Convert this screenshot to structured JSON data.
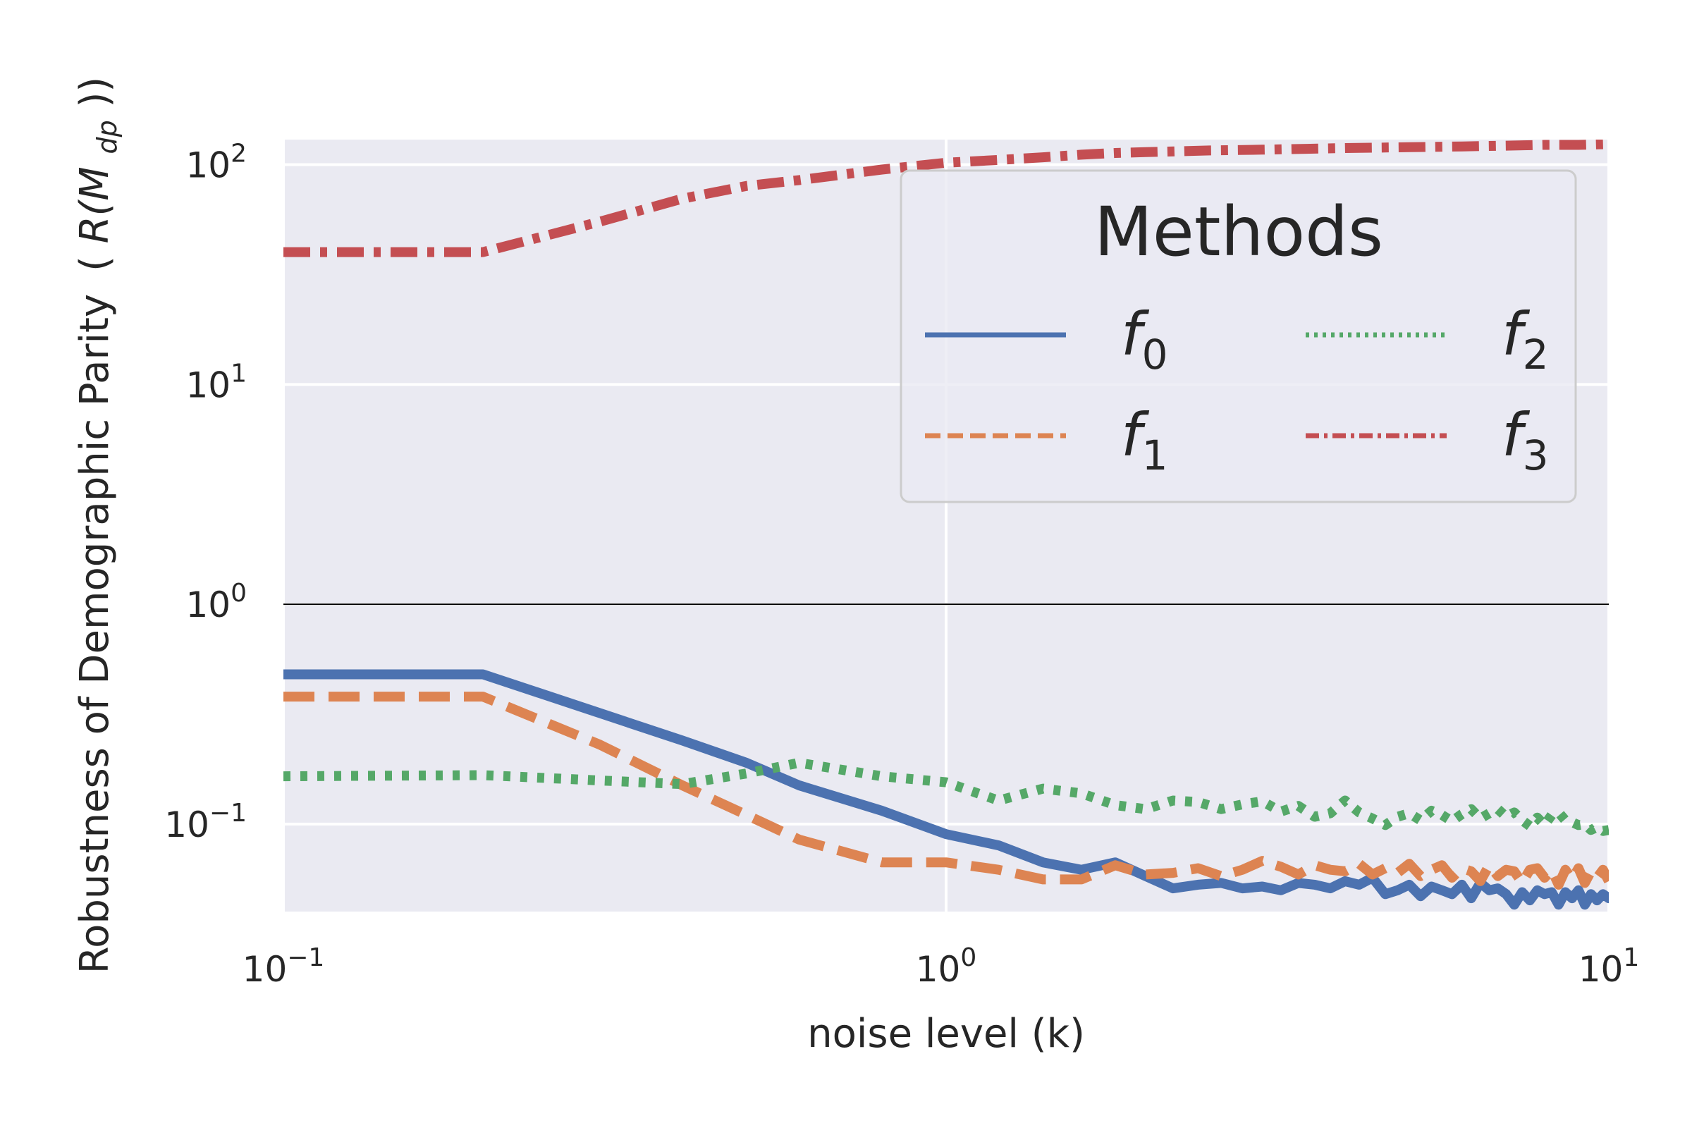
{
  "chart_data": {
    "type": "line",
    "xlabel": "noise level (k)",
    "ylabel": "Robustness of Demographic Parity",
    "ylabel_symbol": {
      "open": "(",
      "base": "R(M",
      "sub": "dp",
      "close": "))"
    },
    "xscale": "log",
    "yscale": "log",
    "xlim": [
      0.1,
      10
    ],
    "ylim": [
      0.04,
      130
    ],
    "x_ticks": [
      {
        "value": 0.1,
        "base": "10",
        "exp": "−1"
      },
      {
        "value": 1,
        "base": "10",
        "exp": "0"
      },
      {
        "value": 10,
        "base": "10",
        "exp": "1"
      }
    ],
    "y_ticks": [
      {
        "value": 0.1,
        "base": "10",
        "exp": "−1"
      },
      {
        "value": 1,
        "base": "10",
        "exp": "0"
      },
      {
        "value": 10,
        "base": "10",
        "exp": "1"
      },
      {
        "value": 100,
        "base": "10",
        "exp": "2"
      }
    ],
    "reference_line": {
      "y": 1,
      "color": "#000000"
    },
    "grid": true,
    "legend": {
      "title": "Methods",
      "placement": "upper right",
      "columns": 2
    },
    "series": [
      {
        "name": "f0",
        "label_base": "f",
        "label_sub": "0",
        "color": "#4c72b0",
        "dash": "solid",
        "points": [
          [
            0.1,
            0.48
          ],
          [
            0.2,
            0.48
          ],
          [
            0.3,
            0.32
          ],
          [
            0.4,
            0.24
          ],
          [
            0.5,
            0.19
          ],
          [
            0.6,
            0.15
          ],
          [
            0.8,
            0.115
          ],
          [
            1.0,
            0.09
          ],
          [
            1.2,
            0.08
          ],
          [
            1.4,
            0.067
          ],
          [
            1.6,
            0.062
          ],
          [
            1.8,
            0.067
          ],
          [
            2.0,
            0.058
          ],
          [
            2.2,
            0.051
          ],
          [
            2.4,
            0.053
          ],
          [
            2.6,
            0.054
          ],
          [
            2.8,
            0.051
          ],
          [
            3.0,
            0.052
          ],
          [
            3.2,
            0.05
          ],
          [
            3.4,
            0.054
          ],
          [
            3.6,
            0.053
          ],
          [
            3.8,
            0.051
          ],
          [
            4.0,
            0.055
          ],
          [
            4.2,
            0.053
          ],
          [
            4.4,
            0.057
          ],
          [
            4.6,
            0.048
          ],
          [
            4.8,
            0.05
          ],
          [
            5.0,
            0.053
          ],
          [
            5.2,
            0.047
          ],
          [
            5.4,
            0.052
          ],
          [
            5.6,
            0.05
          ],
          [
            5.8,
            0.048
          ],
          [
            6.0,
            0.053
          ],
          [
            6.2,
            0.046
          ],
          [
            6.4,
            0.054
          ],
          [
            6.6,
            0.05
          ],
          [
            6.8,
            0.051
          ],
          [
            7.0,
            0.048
          ],
          [
            7.2,
            0.043
          ],
          [
            7.4,
            0.049
          ],
          [
            7.6,
            0.045
          ],
          [
            7.8,
            0.05
          ],
          [
            8.0,
            0.048
          ],
          [
            8.2,
            0.049
          ],
          [
            8.4,
            0.043
          ],
          [
            8.6,
            0.049
          ],
          [
            8.8,
            0.046
          ],
          [
            9.0,
            0.05
          ],
          [
            9.2,
            0.043
          ],
          [
            9.4,
            0.048
          ],
          [
            9.6,
            0.045
          ],
          [
            9.8,
            0.048
          ],
          [
            10.0,
            0.046
          ]
        ]
      },
      {
        "name": "f1",
        "label_base": "f",
        "label_sub": "1",
        "color": "#dd8452",
        "dash": "dashed",
        "points": [
          [
            0.1,
            0.38
          ],
          [
            0.2,
            0.38
          ],
          [
            0.3,
            0.23
          ],
          [
            0.4,
            0.15
          ],
          [
            0.5,
            0.11
          ],
          [
            0.6,
            0.085
          ],
          [
            0.8,
            0.067
          ],
          [
            1.0,
            0.067
          ],
          [
            1.2,
            0.062
          ],
          [
            1.4,
            0.056
          ],
          [
            1.6,
            0.056
          ],
          [
            1.8,
            0.065
          ],
          [
            2.0,
            0.059
          ],
          [
            2.2,
            0.06
          ],
          [
            2.4,
            0.063
          ],
          [
            2.6,
            0.058
          ],
          [
            2.8,
            0.062
          ],
          [
            3.0,
            0.068
          ],
          [
            3.2,
            0.064
          ],
          [
            3.4,
            0.059
          ],
          [
            3.6,
            0.065
          ],
          [
            3.8,
            0.062
          ],
          [
            4.0,
            0.061
          ],
          [
            4.2,
            0.066
          ],
          [
            4.4,
            0.059
          ],
          [
            4.6,
            0.063
          ],
          [
            4.8,
            0.06
          ],
          [
            5.0,
            0.066
          ],
          [
            5.2,
            0.058
          ],
          [
            5.4,
            0.062
          ],
          [
            5.6,
            0.065
          ],
          [
            5.8,
            0.057
          ],
          [
            6.0,
            0.063
          ],
          [
            6.2,
            0.061
          ],
          [
            6.4,
            0.055
          ],
          [
            6.6,
            0.065
          ],
          [
            6.8,
            0.058
          ],
          [
            7.0,
            0.062
          ],
          [
            7.2,
            0.061
          ],
          [
            7.4,
            0.054
          ],
          [
            7.6,
            0.062
          ],
          [
            7.8,
            0.063
          ],
          [
            8.0,
            0.057
          ],
          [
            8.2,
            0.062
          ],
          [
            8.4,
            0.053
          ],
          [
            8.6,
            0.062
          ],
          [
            8.8,
            0.056
          ],
          [
            9.0,
            0.063
          ],
          [
            9.2,
            0.054
          ],
          [
            9.4,
            0.061
          ],
          [
            9.6,
            0.057
          ],
          [
            9.8,
            0.062
          ],
          [
            10.0,
            0.055
          ]
        ]
      },
      {
        "name": "f2",
        "label_base": "f",
        "label_sub": "2",
        "color": "#55a868",
        "dash": "dotted",
        "points": [
          [
            0.1,
            0.165
          ],
          [
            0.2,
            0.167
          ],
          [
            0.3,
            0.158
          ],
          [
            0.4,
            0.152
          ],
          [
            0.5,
            0.17
          ],
          [
            0.6,
            0.19
          ],
          [
            0.8,
            0.165
          ],
          [
            1.0,
            0.155
          ],
          [
            1.2,
            0.128
          ],
          [
            1.4,
            0.145
          ],
          [
            1.6,
            0.138
          ],
          [
            1.8,
            0.122
          ],
          [
            2.0,
            0.117
          ],
          [
            2.2,
            0.128
          ],
          [
            2.4,
            0.126
          ],
          [
            2.6,
            0.117
          ],
          [
            2.8,
            0.123
          ],
          [
            3.0,
            0.127
          ],
          [
            3.2,
            0.114
          ],
          [
            3.4,
            0.121
          ],
          [
            3.6,
            0.108
          ],
          [
            3.8,
            0.112
          ],
          [
            4.0,
            0.128
          ],
          [
            4.2,
            0.113
          ],
          [
            4.4,
            0.106
          ],
          [
            4.6,
            0.099
          ],
          [
            4.8,
            0.108
          ],
          [
            5.0,
            0.112
          ],
          [
            5.2,
            0.104
          ],
          [
            5.4,
            0.115
          ],
          [
            5.6,
            0.11
          ],
          [
            5.8,
            0.103
          ],
          [
            6.0,
            0.111
          ],
          [
            6.2,
            0.117
          ],
          [
            6.4,
            0.106
          ],
          [
            6.6,
            0.112
          ],
          [
            6.8,
            0.117
          ],
          [
            7.0,
            0.108
          ],
          [
            7.2,
            0.113
          ],
          [
            7.4,
            0.104
          ],
          [
            7.6,
            0.098
          ],
          [
            7.8,
            0.107
          ],
          [
            8.0,
            0.099
          ],
          [
            8.2,
            0.11
          ],
          [
            8.4,
            0.113
          ],
          [
            8.6,
            0.104
          ],
          [
            8.8,
            0.102
          ],
          [
            9.0,
            0.099
          ],
          [
            9.2,
            0.1
          ],
          [
            9.4,
            0.094
          ],
          [
            9.6,
            0.097
          ],
          [
            9.8,
            0.093
          ],
          [
            10.0,
            0.094
          ]
        ]
      },
      {
        "name": "f3",
        "label_base": "f",
        "label_sub": "3",
        "color": "#c44e52",
        "dash": "dashdot",
        "points": [
          [
            0.1,
            40
          ],
          [
            0.2,
            40
          ],
          [
            0.3,
            55
          ],
          [
            0.4,
            70
          ],
          [
            0.5,
            80
          ],
          [
            0.6,
            85
          ],
          [
            0.8,
            95
          ],
          [
            1.0,
            102
          ],
          [
            1.2,
            105
          ],
          [
            1.4,
            108
          ],
          [
            1.6,
            111
          ],
          [
            1.8,
            113
          ],
          [
            2.0,
            114
          ],
          [
            2.5,
            116
          ],
          [
            3.0,
            117
          ],
          [
            3.5,
            118
          ],
          [
            4.0,
            119
          ],
          [
            5.0,
            120
          ],
          [
            6.0,
            121
          ],
          [
            7.0,
            122
          ],
          [
            8.0,
            123
          ],
          [
            9.0,
            123
          ],
          [
            10.0,
            124
          ]
        ]
      }
    ]
  }
}
